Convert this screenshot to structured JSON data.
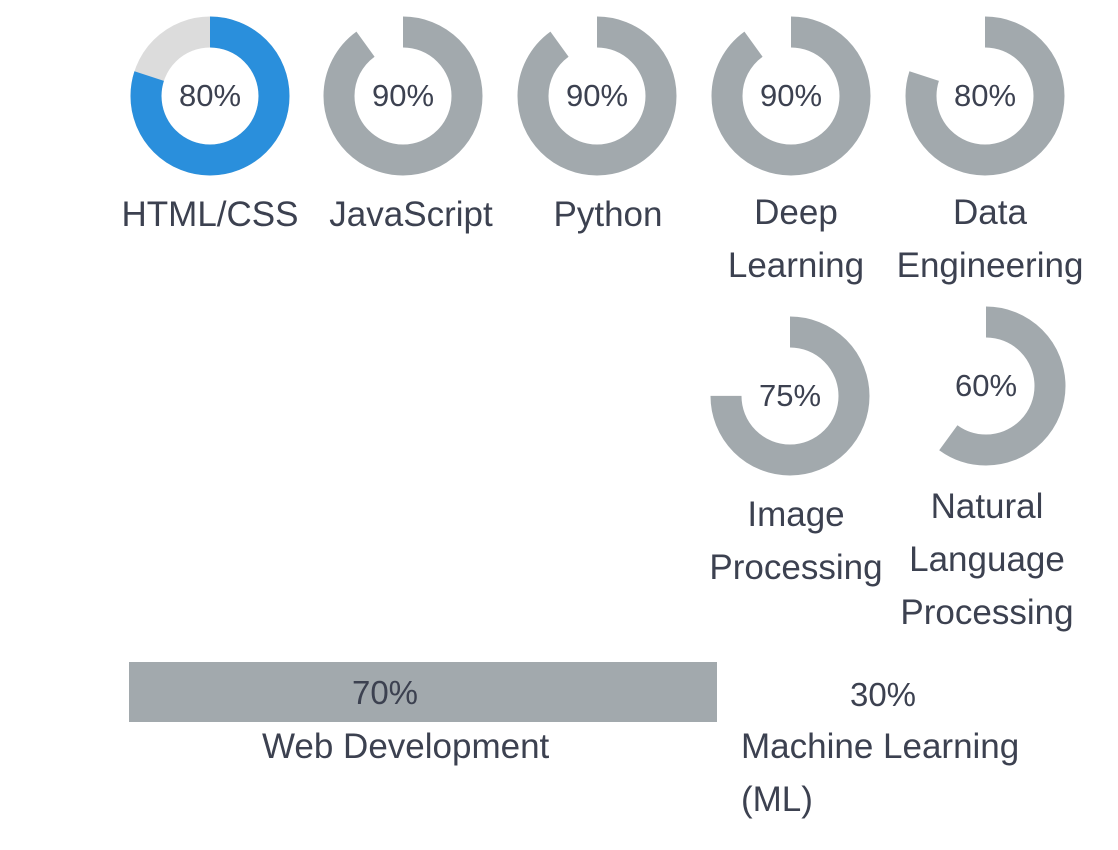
{
  "colors": {
    "accent": "#2a8fdc",
    "ring_gray": "#a2a9ad",
    "ring_track": "#dcdcdc",
    "text": "#3c4150"
  },
  "skills": [
    {
      "percent": "80%",
      "value": 80,
      "label_lines": [
        "HTML/CSS"
      ],
      "active": true
    },
    {
      "percent": "90%",
      "value": 90,
      "label_lines": [
        "JavaScript"
      ],
      "active": false
    },
    {
      "percent": "90%",
      "value": 90,
      "label_lines": [
        "Python"
      ],
      "active": false
    },
    {
      "percent": "90%",
      "value": 90,
      "label_lines": [
        "Deep",
        "Learning"
      ],
      "active": false
    },
    {
      "percent": "80%",
      "value": 80,
      "label_lines": [
        "Data",
        "Engineering"
      ],
      "active": false
    },
    {
      "percent": "75%",
      "value": 75,
      "label_lines": [
        "Image",
        "Processing"
      ],
      "active": false
    },
    {
      "percent": "60%",
      "value": 60,
      "label_lines": [
        "Natural",
        "Language",
        "Processing"
      ],
      "active": false
    }
  ],
  "bars": [
    {
      "percent": "70%",
      "value": 70,
      "label_lines": [
        "Web Development"
      ]
    },
    {
      "percent": "30%",
      "value": 30,
      "label_lines": [
        "Machine Learning",
        "(ML)"
      ]
    }
  ]
}
